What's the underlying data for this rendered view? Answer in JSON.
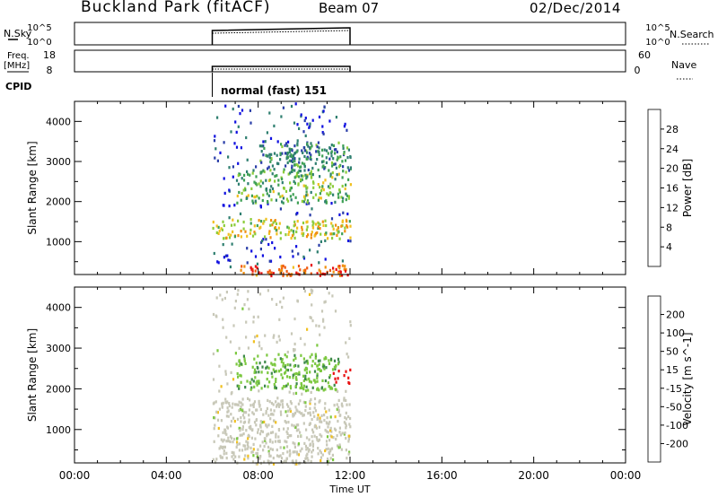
{
  "header": {
    "station": "Buckland Park (fitACF)",
    "beam": "Beam 07",
    "date": "02/Dec/2014"
  },
  "top_panels": {
    "nsky_label": "N.Sky",
    "nsky_ticks": [
      "10^5",
      "10^0"
    ],
    "nsearch_label": "N.Search",
    "nsearch_ticks": [
      "10^5",
      "10^0"
    ],
    "freq_label": "Freq.",
    "freq_unit": "[MHz]",
    "freq_ticks": [
      "18",
      "8"
    ],
    "nave_label": "Nave",
    "nave_ticks": [
      "60",
      "0"
    ],
    "cpid_label": "CPID",
    "cpid_text": "normal (fast) 151"
  },
  "colors": {
    "power": [
      "#1010e0",
      "#2a3ea8",
      "#2f7f70",
      "#3ea055",
      "#8ccc3a",
      "#f0c020",
      "#f09010",
      "#f05a10",
      "#e81010"
    ],
    "velocity": [
      "#e81010",
      "#f05a10",
      "#f09010",
      "#f0c020",
      "#c8c8b8",
      "#7cc840",
      "#3e8a4a",
      "#2a3ea8",
      "#1010e0"
    ]
  },
  "chart_data": [
    {
      "type": "heatmap",
      "name": "power",
      "xlabel": "",
      "ylabel": "Slant Range [km]",
      "x_ticks": [
        "00:00",
        "04:00",
        "08:00",
        "12:00",
        "16:00",
        "20:00",
        "00:00"
      ],
      "xlim_hours": [
        0,
        24
      ],
      "ylim": [
        180,
        4500
      ],
      "y_ticks": [
        1000,
        2000,
        3000,
        4000
      ],
      "data_time_range_hours": [
        6.0,
        12.0
      ],
      "colorbar": {
        "label": "Power [dB]",
        "range": [
          0,
          32
        ],
        "ticks": [
          "4",
          "8",
          "12",
          "16",
          "20",
          "24",
          "28"
        ]
      },
      "features": [
        {
          "range_km": [
            180,
            450
          ],
          "time": [
            7.2,
            12.0
          ],
          "value_db": 26
        },
        {
          "range_km": [
            1100,
            1600
          ],
          "time": [
            6.0,
            12.0
          ],
          "value_db": 18
        },
        {
          "range_km": [
            2000,
            2800
          ],
          "time": [
            7.0,
            12.0
          ],
          "value_db": 14
        },
        {
          "range_km": [
            2800,
            3500
          ],
          "time": [
            8.0,
            12.0
          ],
          "value_db": 10
        }
      ]
    },
    {
      "type": "heatmap",
      "name": "velocity",
      "xlabel": "Time UT",
      "ylabel": "Slant Range [km]",
      "x_ticks": [
        "00:00",
        "04:00",
        "08:00",
        "12:00",
        "16:00",
        "20:00",
        "00:00"
      ],
      "xlim_hours": [
        0,
        24
      ],
      "ylim": [
        180,
        4500
      ],
      "y_ticks": [
        1000,
        2000,
        3000,
        4000
      ],
      "data_time_range_hours": [
        6.0,
        12.0
      ],
      "colorbar": {
        "label": "Velocity [m s^-1]",
        "range": [
          -250,
          250
        ],
        "ticks": [
          "200",
          "100",
          "50",
          "15",
          "-15",
          "-50",
          "-100",
          "-200"
        ]
      },
      "features": [
        {
          "range_km": [
            180,
            1800
          ],
          "time": [
            6.0,
            12.0
          ],
          "value_ms": 0
        },
        {
          "range_km": [
            2000,
            2900
          ],
          "time": [
            7.0,
            11.5
          ],
          "value_ms": -70
        },
        {
          "range_km": [
            2150,
            2500
          ],
          "time": [
            11.2,
            12.0
          ],
          "value_ms": 220
        }
      ]
    }
  ]
}
